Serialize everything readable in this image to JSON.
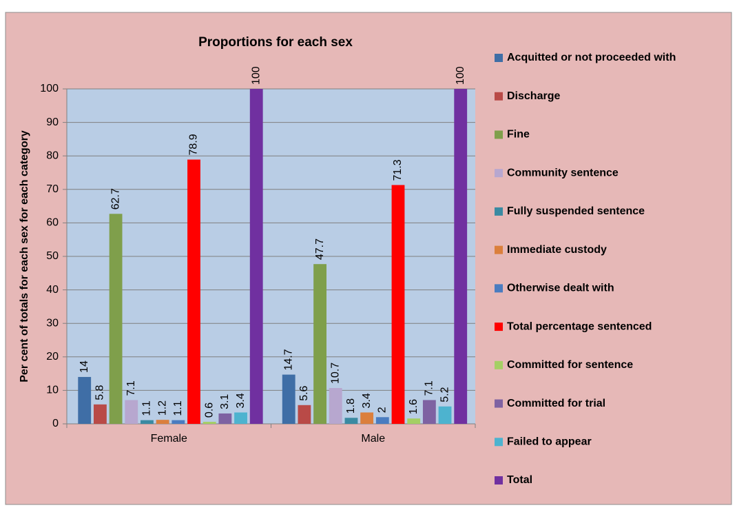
{
  "chart_data": {
    "type": "bar",
    "title": "Proportions for each sex",
    "y_label": "Per cent of totals for each sex  for each category",
    "categories": [
      "Female",
      "Male"
    ],
    "series": [
      {
        "name": "Acquitted or not proceeded with",
        "color": "#3f6ea6",
        "values": [
          14,
          14.7
        ]
      },
      {
        "name": "Discharge",
        "color": "#b94a47",
        "values": [
          5.8,
          5.6
        ]
      },
      {
        "name": "Fine",
        "color": "#7f9f4b",
        "values": [
          62.7,
          47.7
        ]
      },
      {
        "name": "Community sentence",
        "color": "#b7a7cf",
        "values": [
          7.1,
          10.7
        ]
      },
      {
        "name": "Fully suspended sentence",
        "color": "#3a8aa2",
        "values": [
          1.1,
          1.8
        ]
      },
      {
        "name": "Immediate custody",
        "color": "#db7f3c",
        "values": [
          1.2,
          3.4
        ]
      },
      {
        "name": "Otherwise dealt with",
        "color": "#4a7cc0",
        "values": [
          1.1,
          2
        ]
      },
      {
        "name": "Total percentage sentenced",
        "color": "#ff0000",
        "values": [
          78.9,
          71.3
        ]
      },
      {
        "name": "Committed for sentence",
        "color": "#a4cf64",
        "values": [
          0.6,
          1.6
        ]
      },
      {
        "name": "Committed for trial",
        "color": "#7e62a2",
        "values": [
          3.1,
          7.1
        ]
      },
      {
        "name": "Failed to appear",
        "color": "#4db3cf",
        "values": [
          3.4,
          5.2
        ]
      },
      {
        "name": "Total",
        "color": "#7030a0",
        "values": [
          100,
          100
        ]
      }
    ],
    "ylim": [
      0,
      100
    ],
    "yticks": [
      0,
      10,
      20,
      30,
      40,
      50,
      60,
      70,
      80,
      90,
      100
    ],
    "grid": true,
    "legend": "right"
  }
}
